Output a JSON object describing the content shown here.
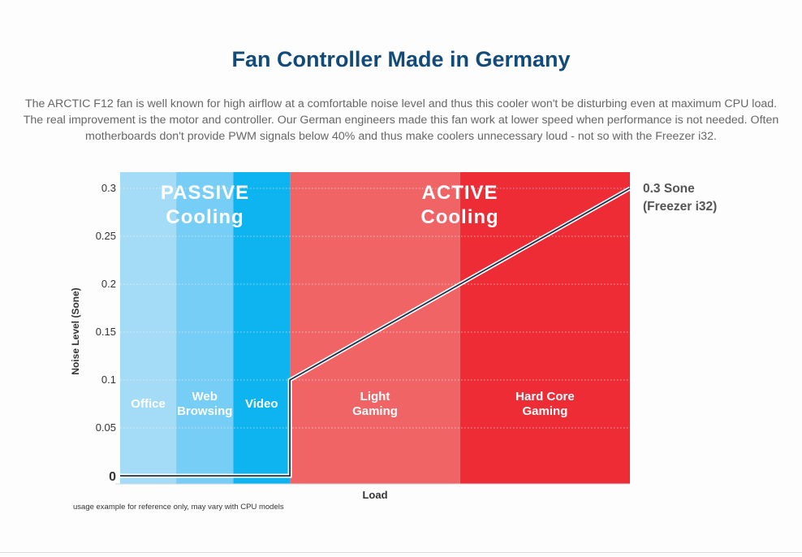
{
  "title": "Fan Controller Made in Germany",
  "description": "The ARCTIC F12 fan is well known for high airflow at a comfortable noise level and thus this cooler won't be disturbing even at maximum CPU load. The real improvement is the motor and controller. Our German engineers made this fan work at lower speed when performance is not needed. Often motherboards don't provide PWM signals below 40% and thus make coolers unnecessary loud - not so with the Freezer i32.",
  "footnote": "usage example for reference only, may vary with CPU models",
  "chart_data": {
    "type": "line",
    "xlabel": "Load",
    "ylabel": "Noise Level (Sone)",
    "ylim": [
      0,
      0.3
    ],
    "yticks": [
      "0.3",
      "0.25",
      "0.2",
      "0.15",
      "0.1",
      "0.05",
      "0"
    ],
    "grid": true,
    "zones": [
      {
        "label_lines": [
          "PASSIVE",
          "Cooling"
        ],
        "color": "#2db8ec"
      },
      {
        "label_lines": [
          "ACTIVE",
          "Cooling"
        ],
        "color": "#e8313a"
      }
    ],
    "regions": [
      {
        "label_lines": [
          "Office"
        ],
        "color": "#a4dcf7"
      },
      {
        "label_lines": [
          "Web",
          "Browsing"
        ],
        "color": "#76cdf5"
      },
      {
        "label_lines": [
          "Video"
        ],
        "color": "#0eb4ef"
      },
      {
        "label_lines": [
          "Light",
          "Gaming"
        ],
        "color": "#f06466"
      },
      {
        "label_lines": [
          "Hard Core",
          "Gaming"
        ],
        "color": "#ee2c36"
      }
    ],
    "series": [
      {
        "name": "Freezer i32",
        "label_lines": [
          "0.3 Sone",
          "(Freezer i32)"
        ],
        "points": [
          [
            0,
            0
          ],
          [
            0.333,
            0
          ],
          [
            0.333,
            0.1
          ],
          [
            1,
            0.3
          ]
        ]
      }
    ]
  }
}
